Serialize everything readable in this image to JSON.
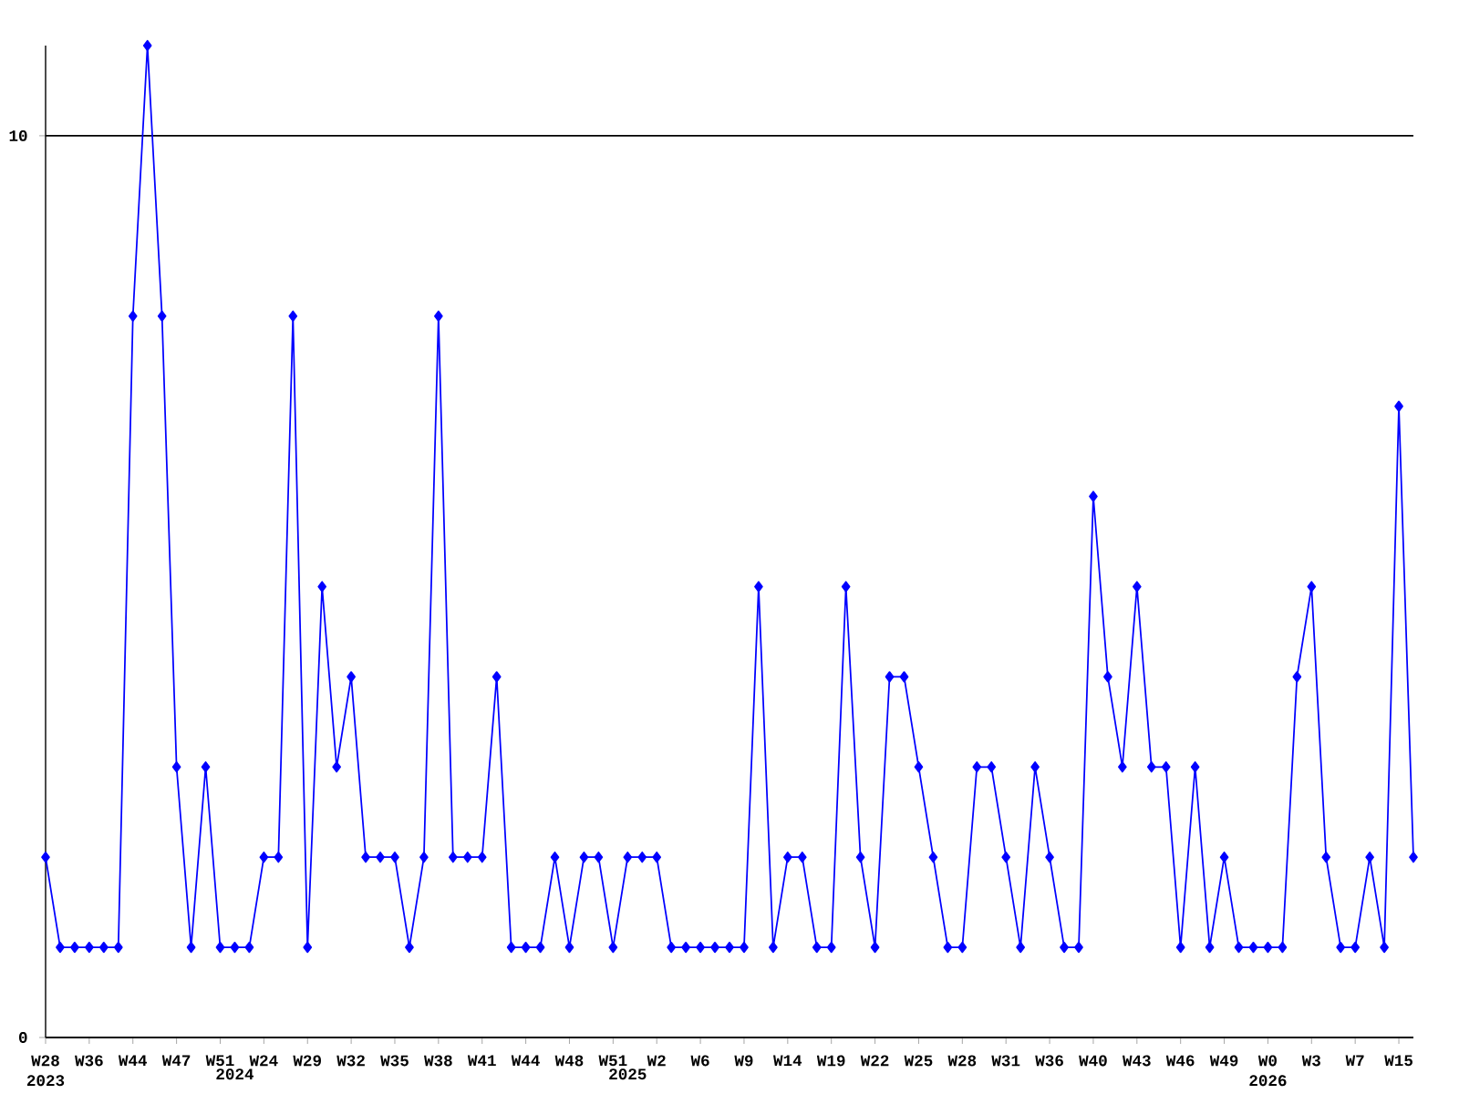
{
  "chart_data": {
    "type": "line",
    "categories": [
      "W28 2023",
      null,
      null,
      "W36",
      null,
      null,
      "W44",
      null,
      null,
      "W47",
      null,
      null,
      "W51",
      "2024",
      null,
      "W24",
      null,
      null,
      "W29",
      null,
      null,
      "W32",
      null,
      null,
      "W35",
      null,
      null,
      "W38",
      null,
      null,
      "W41",
      null,
      null,
      "W44",
      null,
      null,
      "W48",
      null,
      null,
      "W51",
      "2025",
      null,
      "W2",
      null,
      null,
      "W6",
      null,
      null,
      "W9",
      null,
      null,
      "W14",
      null,
      null,
      "W19",
      null,
      null,
      "W22",
      null,
      null,
      "W25",
      null,
      null,
      "W28",
      null,
      null,
      "W31",
      null,
      null,
      "W36",
      null,
      null,
      "W40",
      null,
      null,
      "W43",
      null,
      null,
      "W46",
      null,
      null,
      "W49",
      null,
      null,
      "W0 2026",
      null,
      null,
      "W3",
      null,
      null,
      "W7",
      null,
      null,
      "W15",
      null
    ],
    "values": [
      2,
      1,
      1,
      1,
      1,
      1,
      8,
      11,
      8,
      3,
      1,
      3,
      1,
      1,
      1,
      2,
      2,
      8,
      1,
      5,
      3,
      4,
      2,
      2,
      2,
      1,
      2,
      8,
      2,
      2,
      2,
      4,
      1,
      1,
      1,
      2,
      1,
      2,
      2,
      1,
      2,
      2,
      2,
      1,
      1,
      1,
      1,
      1,
      1,
      5,
      1,
      2,
      2,
      1,
      1,
      5,
      2,
      1,
      4,
      4,
      3,
      2,
      1,
      1,
      3,
      3,
      2,
      1,
      3,
      2,
      1,
      1,
      6,
      4,
      3,
      5,
      3,
      3,
      1,
      3,
      1,
      2,
      1,
      1,
      1,
      1,
      4,
      5,
      2,
      1,
      1,
      2,
      1,
      7,
      2
    ],
    "color": "#0000ff",
    "marker": "diamond",
    "line_style": "solid",
    "ylim": [
      0,
      11
    ],
    "yticks": [
      0,
      10
    ],
    "grid": "y"
  }
}
